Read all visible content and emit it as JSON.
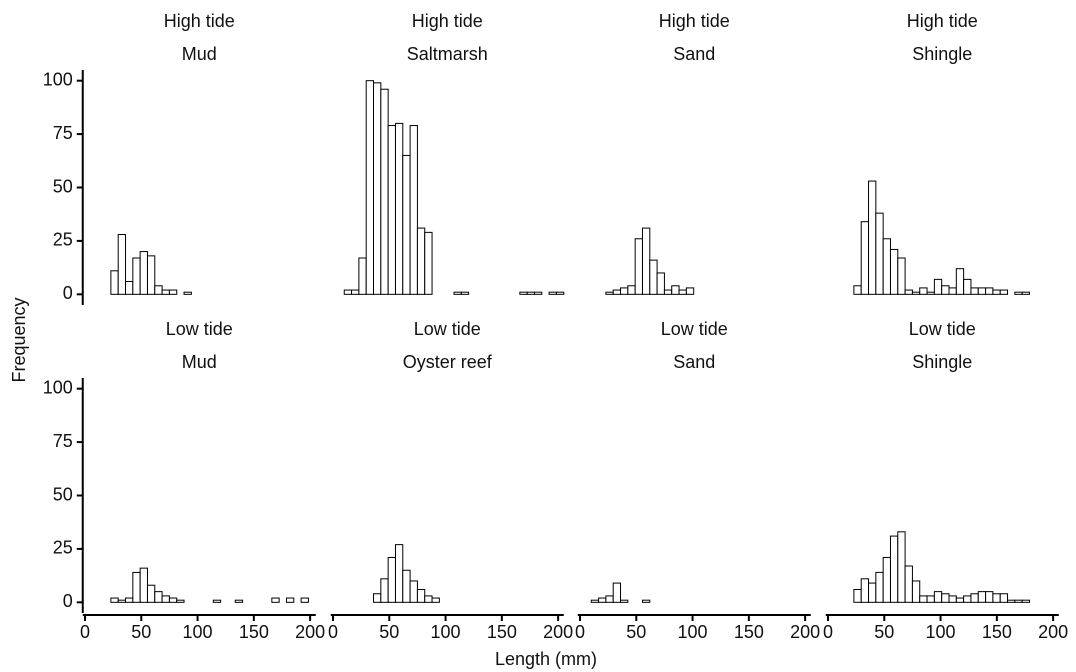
{
  "axis_labels": {
    "x": "Length (mm)",
    "y": "Frequency"
  },
  "chart_data": [
    {
      "type": "histogram",
      "title": "High tide",
      "subtitle": "Mud",
      "bins": [
        10,
        16.5,
        23,
        29.5,
        36,
        42.5,
        49,
        55.5,
        62,
        68.5,
        75,
        81.5,
        88,
        94.5,
        101,
        107.5,
        114,
        120.5,
        127,
        133.5,
        140,
        146.5,
        153,
        159.5,
        166,
        172.5,
        179,
        185.5,
        192,
        198.5,
        205
      ],
      "counts": [
        0,
        0,
        11,
        28,
        6,
        17,
        20,
        18,
        4,
        2,
        2,
        0,
        1,
        0,
        0,
        0,
        0,
        0,
        0,
        0,
        0,
        0,
        0,
        0,
        0,
        0,
        0,
        0,
        0,
        0
      ],
      "xlim": [
        -2,
        205
      ],
      "ylim": [
        -5,
        105
      ],
      "xticks": [
        0,
        50,
        100,
        150,
        200
      ],
      "yticks": [
        0,
        25,
        50,
        75,
        100
      ]
    },
    {
      "type": "histogram",
      "title": "High tide",
      "subtitle": "Saltmarsh",
      "bins": [
        10,
        16.5,
        23,
        29.5,
        36,
        42.5,
        49,
        55.5,
        62,
        68.5,
        75,
        81.5,
        88,
        94.5,
        101,
        107.5,
        114,
        120.5,
        127,
        133.5,
        140,
        146.5,
        153,
        159.5,
        166,
        172.5,
        179,
        185.5,
        192,
        198.5,
        205
      ],
      "counts": [
        2,
        2,
        17,
        100,
        99,
        96,
        79,
        80,
        65,
        79,
        31,
        29,
        0,
        0,
        0,
        1,
        1,
        0,
        0,
        0,
        0,
        0,
        0,
        0,
        1,
        1,
        1,
        0,
        1,
        1
      ],
      "xlim": [
        -2,
        205
      ],
      "ylim": [
        -5,
        105
      ],
      "xticks": [
        0,
        50,
        100,
        150,
        200
      ],
      "yticks": [
        0,
        25,
        50,
        75,
        100
      ]
    },
    {
      "type": "histogram",
      "title": "High tide",
      "subtitle": "Sand",
      "bins": [
        10,
        16.5,
        23,
        29.5,
        36,
        42.5,
        49,
        55.5,
        62,
        68.5,
        75,
        81.5,
        88,
        94.5,
        101,
        107.5,
        114,
        120.5,
        127,
        133.5,
        140,
        146.5,
        153,
        159.5,
        166,
        172.5,
        179,
        185.5,
        192,
        198.5,
        205
      ],
      "counts": [
        0,
        0,
        1,
        2,
        3,
        4,
        26,
        31,
        16,
        10,
        2,
        4,
        2,
        3,
        0,
        0,
        0,
        0,
        0,
        0,
        0,
        0,
        0,
        0,
        0,
        0,
        0,
        0,
        0,
        0
      ],
      "xlim": [
        -2,
        205
      ],
      "ylim": [
        -5,
        105
      ],
      "xticks": [
        0,
        50,
        100,
        150,
        200
      ],
      "yticks": [
        0,
        25,
        50,
        75,
        100
      ]
    },
    {
      "type": "histogram",
      "title": "High tide",
      "subtitle": "Shingle",
      "bins": [
        10,
        16.5,
        23,
        29.5,
        36,
        42.5,
        49,
        55.5,
        62,
        68.5,
        75,
        81.5,
        88,
        94.5,
        101,
        107.5,
        114,
        120.5,
        127,
        133.5,
        140,
        146.5,
        153,
        159.5,
        166,
        172.5,
        179,
        185.5,
        192,
        198.5,
        205
      ],
      "counts": [
        0,
        0,
        4,
        34,
        53,
        38,
        26,
        21,
        17,
        2,
        1,
        3,
        1,
        7,
        4,
        3,
        12,
        7,
        3,
        3,
        3,
        2,
        2,
        0,
        1,
        1,
        0,
        0,
        0,
        0
      ],
      "xlim": [
        -2,
        205
      ],
      "ylim": [
        -5,
        105
      ],
      "xticks": [
        0,
        50,
        100,
        150,
        200
      ],
      "yticks": [
        0,
        25,
        50,
        75,
        100
      ]
    },
    {
      "type": "histogram",
      "title": "Low tide",
      "subtitle": "Mud",
      "bins": [
        10,
        16.5,
        23,
        29.5,
        36,
        42.5,
        49,
        55.5,
        62,
        68.5,
        75,
        81.5,
        88,
        94.5,
        101,
        107.5,
        114,
        120.5,
        127,
        133.5,
        140,
        146.5,
        153,
        159.5,
        166,
        172.5,
        179,
        185.5,
        192,
        198.5,
        205
      ],
      "counts": [
        0,
        0,
        2,
        1,
        2,
        14,
        16,
        8,
        5,
        3,
        2,
        1,
        0,
        0,
        0,
        0,
        1,
        0,
        0,
        1,
        0,
        0,
        0,
        0,
        2,
        0,
        2,
        0,
        2,
        0
      ],
      "xlim": [
        -2,
        205
      ],
      "ylim": [
        -5,
        105
      ],
      "xticks": [
        0,
        50,
        100,
        150,
        200
      ],
      "yticks": [
        0,
        25,
        50,
        75,
        100
      ]
    },
    {
      "type": "histogram",
      "title": "Low tide",
      "subtitle": "Oyster reef",
      "bins": [
        10,
        16.5,
        23,
        29.5,
        36,
        42.5,
        49,
        55.5,
        62,
        68.5,
        75,
        81.5,
        88,
        94.5,
        101,
        107.5,
        114,
        120.5,
        127,
        133.5,
        140,
        146.5,
        153,
        159.5,
        166,
        172.5,
        179,
        185.5,
        192,
        198.5,
        205
      ],
      "counts": [
        0,
        0,
        0,
        0,
        4,
        11,
        21,
        27,
        15,
        10,
        6,
        3,
        2,
        0,
        0,
        0,
        0,
        0,
        0,
        0,
        0,
        0,
        0,
        0,
        0,
        0,
        0,
        0,
        0,
        0
      ],
      "xlim": [
        -2,
        205
      ],
      "ylim": [
        -5,
        105
      ],
      "xticks": [
        0,
        50,
        100,
        150,
        200
      ],
      "yticks": [
        0,
        25,
        50,
        75,
        100
      ]
    },
    {
      "type": "histogram",
      "title": "Low tide",
      "subtitle": "Sand",
      "bins": [
        10,
        16.5,
        23,
        29.5,
        36,
        42.5,
        49,
        55.5,
        62,
        68.5,
        75,
        81.5,
        88,
        94.5,
        101,
        107.5,
        114,
        120.5,
        127,
        133.5,
        140,
        146.5,
        153,
        159.5,
        166,
        172.5,
        179,
        185.5,
        192,
        198.5,
        205
      ],
      "counts": [
        1,
        2,
        3,
        9,
        1,
        0,
        0,
        1,
        0,
        0,
        0,
        0,
        0,
        0,
        0,
        0,
        0,
        0,
        0,
        0,
        0,
        0,
        0,
        0,
        0,
        0,
        0,
        0,
        0,
        0
      ],
      "xlim": [
        -2,
        205
      ],
      "ylim": [
        -5,
        105
      ],
      "xticks": [
        0,
        50,
        100,
        150,
        200
      ],
      "yticks": [
        0,
        25,
        50,
        75,
        100
      ]
    },
    {
      "type": "histogram",
      "title": "Low tide",
      "subtitle": "Shingle",
      "bins": [
        10,
        16.5,
        23,
        29.5,
        36,
        42.5,
        49,
        55.5,
        62,
        68.5,
        75,
        81.5,
        88,
        94.5,
        101,
        107.5,
        114,
        120.5,
        127,
        133.5,
        140,
        146.5,
        153,
        159.5,
        166,
        172.5,
        179,
        185.5,
        192,
        198.5,
        205
      ],
      "counts": [
        0,
        0,
        6,
        11,
        9,
        14,
        21,
        31,
        33,
        17,
        10,
        3,
        3,
        5,
        4,
        3,
        2,
        3,
        4,
        5,
        5,
        4,
        4,
        1,
        1,
        1,
        0,
        0,
        0,
        0
      ],
      "xlim": [
        -2,
        205
      ],
      "ylim": [
        -5,
        105
      ],
      "xticks": [
        0,
        50,
        100,
        150,
        200
      ],
      "yticks": [
        0,
        25,
        50,
        75,
        100
      ]
    }
  ]
}
